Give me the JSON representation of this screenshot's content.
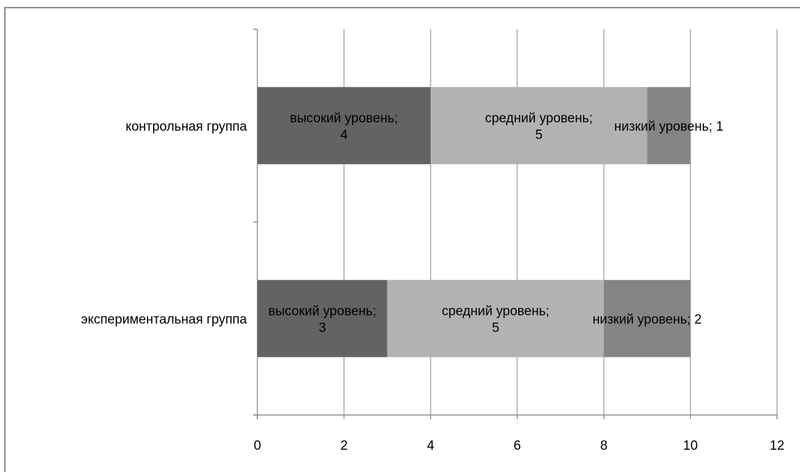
{
  "chart_data": {
    "type": "bar",
    "orientation": "horizontal",
    "stacked": true,
    "categories": [
      "контрольная группа",
      "экспериментальная группа"
    ],
    "series": [
      {
        "values": [
          4,
          3
        ],
        "labels": [
          "высокий уровень;|4",
          "высокий уровень;|3"
        ],
        "color": "#636363"
      },
      {
        "values": [
          5,
          5
        ],
        "labels": [
          "средний уровень;|5",
          "средний уровень;|5"
        ],
        "color": "#b2b2b2"
      },
      {
        "values": [
          1,
          2
        ],
        "labels": [
          "низкий уровень; 1",
          "низкий уровень; 2"
        ],
        "color": "#858585"
      }
    ],
    "xlim": [
      0,
      12
    ],
    "xticks": [
      "0",
      "2",
      "4",
      "6",
      "8",
      "10",
      "12"
    ],
    "xlabel": "",
    "ylabel": "",
    "title": "",
    "grid": true,
    "legend": "none",
    "gridline_color": "#a6a6a6"
  }
}
